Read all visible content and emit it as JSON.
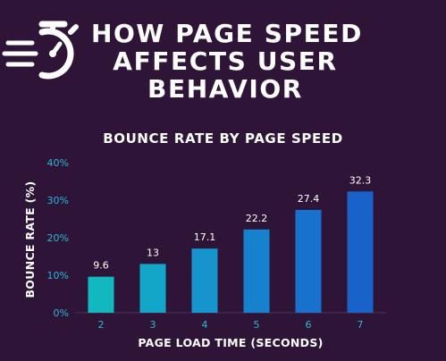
{
  "header": {
    "title_lines": [
      "HOW PAGE SPEED",
      "AFFECTS USER",
      "BEHAVIOR"
    ],
    "icon": "stopwatch-icon"
  },
  "colors": {
    "background": "#2e1538",
    "tick_text": "#29b7d3",
    "bar_gradient": [
      "#12b8c0",
      "#14a6c8",
      "#1594cd",
      "#1682ce",
      "#1771cd",
      "#1862c9"
    ]
  },
  "chart_data": {
    "type": "bar",
    "title": "BOUNCE RATE BY PAGE SPEED",
    "xlabel": "PAGE LOAD TIME (SECONDS)",
    "ylabel": "BOUNCE RATE (%)",
    "categories": [
      "2",
      "3",
      "4",
      "5",
      "6",
      "7"
    ],
    "values": [
      9.6,
      13,
      17.1,
      22.2,
      27.4,
      32.3
    ],
    "data_labels": [
      "9.6",
      "13",
      "17.1",
      "22.2",
      "27.4",
      "32.3"
    ],
    "ylim": [
      0,
      40
    ],
    "yticks": [
      "0%",
      "10%",
      "20%",
      "30%",
      "40%"
    ],
    "grid": false,
    "legend": "none"
  }
}
